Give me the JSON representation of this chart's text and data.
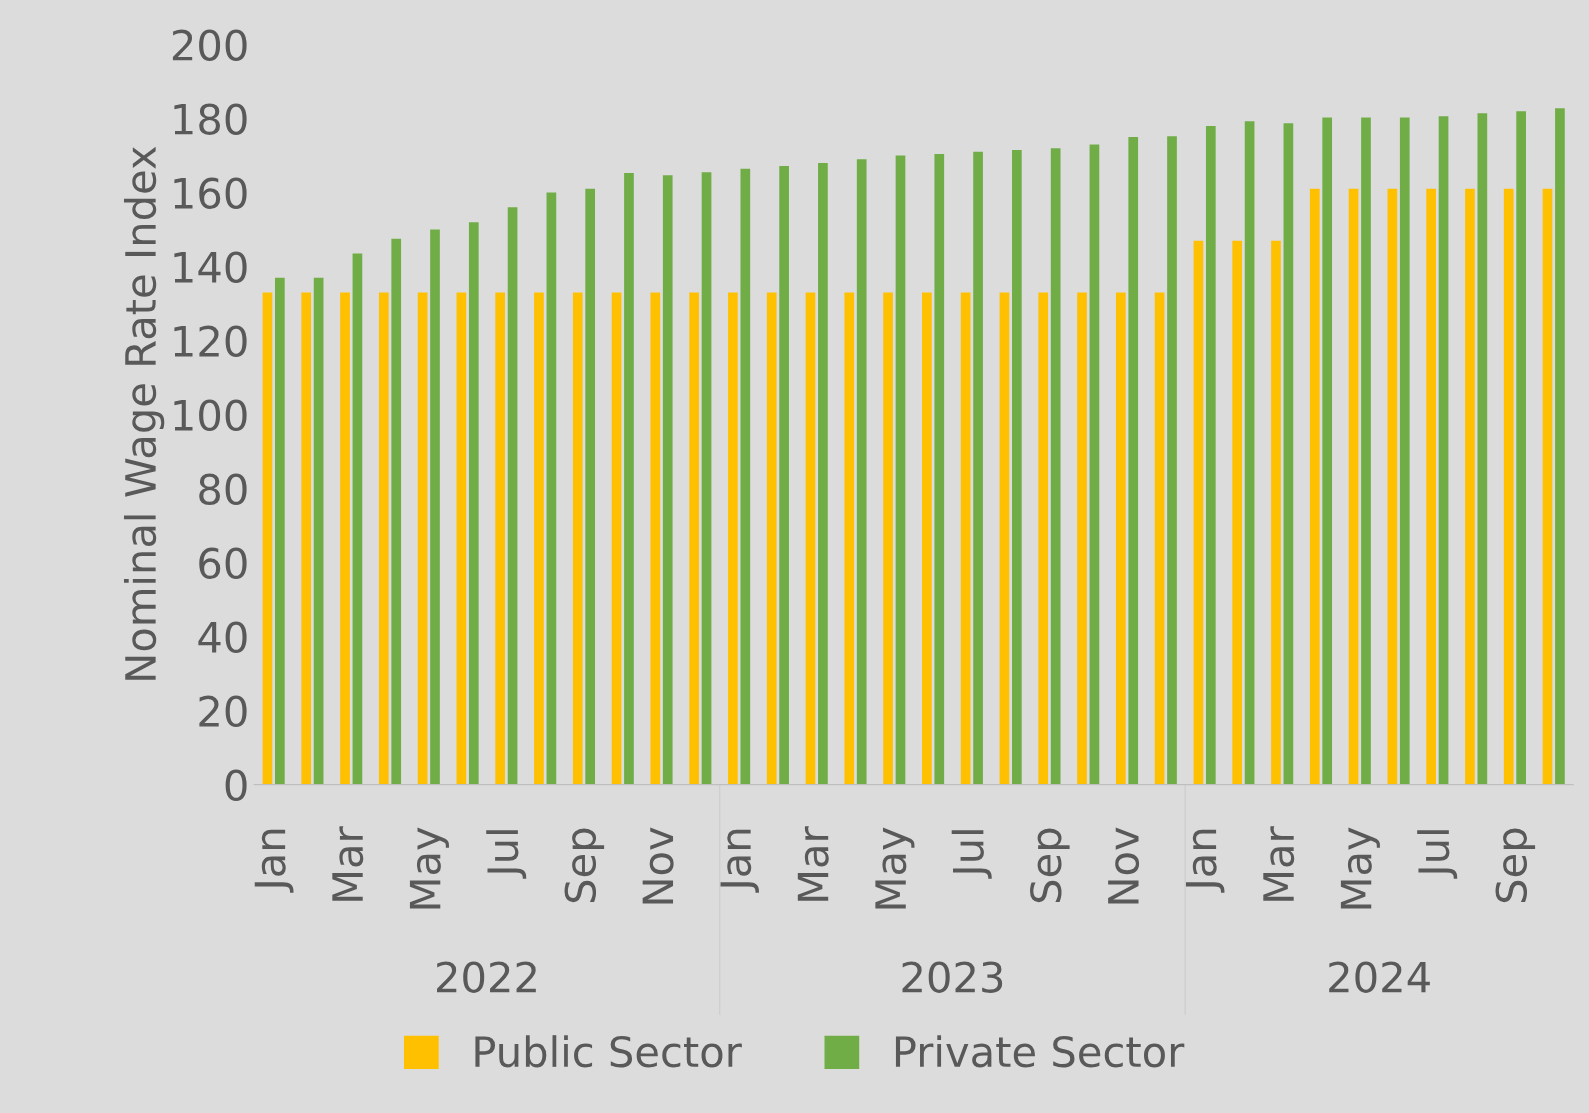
{
  "chart_data": {
    "type": "bar",
    "ylabel": "Nominal Wage Rate Index",
    "categories": [
      "Jan",
      null,
      "Mar",
      null,
      "May",
      null,
      "Jul",
      null,
      "Sep",
      null,
      "Nov",
      null,
      "Jan",
      null,
      "Mar",
      null,
      "May",
      null,
      "Jul",
      null,
      "Sep",
      null,
      "Nov",
      null,
      "Jan",
      null,
      "Mar",
      null,
      "May",
      null,
      "Jul",
      null,
      "Sep",
      null
    ],
    "series": [
      {
        "name": "Public Sector",
        "color": "#ffc000",
        "values": [
          133,
          133,
          133,
          133,
          133,
          133,
          133,
          133,
          133,
          133,
          133,
          133,
          133,
          133,
          133,
          133,
          133,
          133,
          133,
          133,
          133,
          133,
          133,
          133,
          147,
          147,
          147,
          161,
          161,
          161,
          161,
          161,
          161,
          161
        ]
      },
      {
        "name": "Private Sector",
        "color": "#70ad47",
        "values": [
          137,
          137,
          143.5,
          147.5,
          150,
          152,
          156,
          160,
          161,
          165.3,
          164.7,
          165.5,
          166.4,
          167.2,
          168,
          169,
          170,
          170.4,
          171,
          171.5,
          172,
          173,
          175,
          175.2,
          178,
          179.3,
          178.7,
          180.3,
          180.3,
          180.3,
          180.6,
          181.4,
          182,
          182.8
        ]
      }
    ],
    "annotations": [
      "2022",
      "2023",
      "2024"
    ],
    "ylim": [
      0,
      200
    ],
    "yticks": [
      0,
      20,
      40,
      60,
      80,
      100,
      120,
      140,
      160,
      180,
      200
    ],
    "grid": false,
    "legend": "bottom"
  }
}
